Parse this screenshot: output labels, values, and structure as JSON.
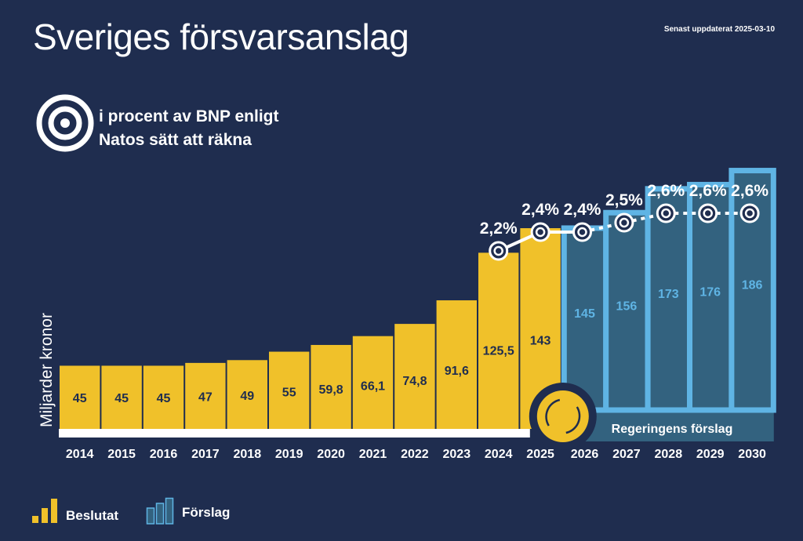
{
  "header": {
    "title": "Sveriges försvarsanslag",
    "updated": "Senast uppdaterat  2025-03-10",
    "subtitle_line1": "i procent av BNP enligt",
    "subtitle_line2": "Natos sätt att räkna",
    "icon": "target-icon"
  },
  "legend": {
    "decided": "Beslutat",
    "proposed": "Förslag"
  },
  "band_label": "Regeringens förslag",
  "colors": {
    "background": "#1f2d4f",
    "decided": "#f0c12a",
    "proposed_fill": "#33627f",
    "proposed_border": "#5fb4e4",
    "proposed_text": "#5fb4e4"
  },
  "chart_data": {
    "type": "bar",
    "ylabel": "Miljarder kronor",
    "categories": [
      "2014",
      "2015",
      "2016",
      "2017",
      "2018",
      "2019",
      "2020",
      "2021",
      "2022",
      "2023",
      "2024",
      "2025",
      "2026",
      "2027",
      "2028",
      "2029",
      "2030"
    ],
    "values": [
      45,
      45,
      45,
      47,
      49,
      55,
      59.8,
      66.1,
      74.8,
      91.6,
      125.5,
      143,
      145,
      156,
      173,
      176,
      186
    ],
    "value_labels": [
      "45",
      "45",
      "45",
      "47",
      "49",
      "55",
      "59,8",
      "66,1",
      "74,8",
      "91,6",
      "125,5",
      "143",
      "145",
      "156",
      "173",
      "176",
      "186"
    ],
    "status": [
      "Beslutat",
      "Beslutat",
      "Beslutat",
      "Beslutat",
      "Beslutat",
      "Beslutat",
      "Beslutat",
      "Beslutat",
      "Beslutat",
      "Beslutat",
      "Beslutat",
      "Beslutat",
      "Förslag",
      "Förslag",
      "Förslag",
      "Förslag",
      "Förslag"
    ],
    "gdp_share": {
      "name": "i procent av BNP enligt Natos sätt att räkna",
      "years": [
        "2024",
        "2025",
        "2026",
        "2027",
        "2028",
        "2029",
        "2030"
      ],
      "values": [
        2.2,
        2.4,
        2.4,
        2.5,
        2.6,
        2.6,
        2.6
      ],
      "labels": [
        "2,2%",
        "2,4%",
        "2,4%",
        "2,5%",
        "2,6%",
        "2,6%",
        "2,6%"
      ]
    }
  }
}
